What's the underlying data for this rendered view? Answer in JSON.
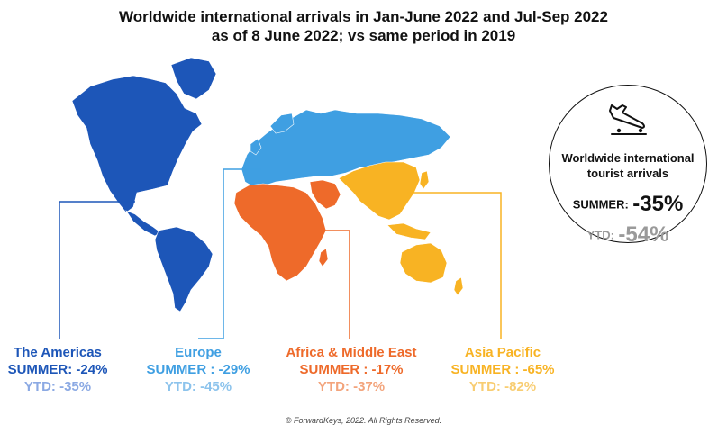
{
  "title": {
    "line1": "Worldwide international arrivals in Jan-June 2022 and Jul-Sep 2022",
    "line2": "as of 8 June 2022; vs same period in 2019"
  },
  "colors": {
    "americas": "#1d56b8",
    "americas_ytd": "#8ba9e3",
    "europe": "#3f9fe2",
    "europe_ytd": "#8cc3ec",
    "africa_me": "#ee6a2a",
    "africa_me_ytd": "#f3a47c",
    "asia_pacific": "#f8b323",
    "asia_pacific_ytd": "#f8cd72"
  },
  "regions": [
    {
      "name": "The Americas",
      "summer": "SUMMER: -24%",
      "ytd": "YTD: -35%"
    },
    {
      "name": "Europe",
      "summer": "SUMMER : -29%",
      "ytd": "YTD: -45%"
    },
    {
      "name": "Africa & Middle East",
      "summer": "SUMMER : -17%",
      "ytd": "YTD: -37%"
    },
    {
      "name": "Asia Pacific",
      "summer": "SUMMER : -65%",
      "ytd": "YTD: -82%"
    }
  ],
  "worldwide": {
    "icon": "airplane-arrival-icon",
    "caption_line1": "Worldwide international",
    "caption_line2": "tourist arrivals",
    "summer_label": "SUMMER:",
    "summer_value": "-35%",
    "ytd_label": "YTD:",
    "ytd_value": "-54%"
  },
  "footer": "© ForwardKeys, 2022. All Rights Reserved."
}
